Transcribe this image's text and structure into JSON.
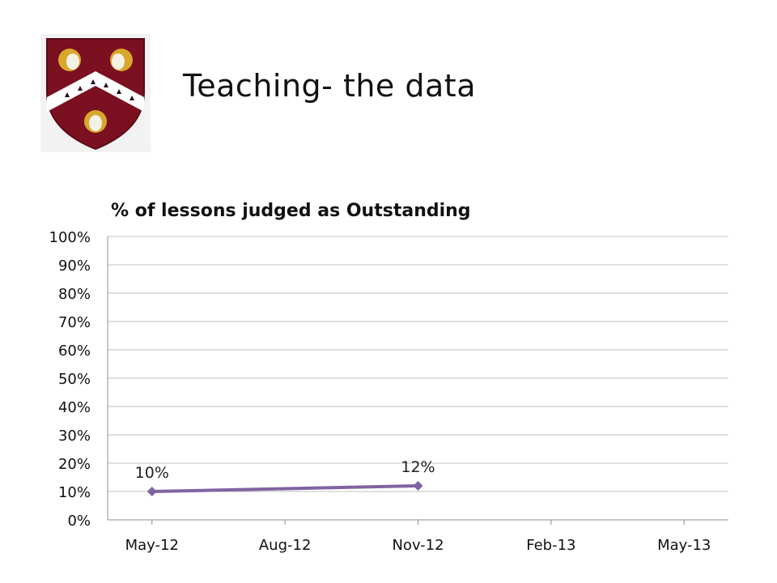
{
  "slide": {
    "title": "Teaching- the data"
  },
  "crest": {
    "name": "school-crest",
    "colors": {
      "maroon": "#7a1020",
      "gold": "#d9a72b",
      "white": "#ffffff"
    }
  },
  "chart_data": {
    "type": "line",
    "title": "% of lessons judged as Outstanding",
    "xlabel": "",
    "ylabel": "",
    "x_ticks": [
      "May-12",
      "Aug-12",
      "Nov-12",
      "Feb-13",
      "May-13"
    ],
    "x_range": [
      "2012-04",
      "2013-06"
    ],
    "y_ticks": [
      "0%",
      "10%",
      "20%",
      "30%",
      "40%",
      "50%",
      "60%",
      "70%",
      "80%",
      "90%",
      "100%"
    ],
    "ylim": [
      0,
      100
    ],
    "grid": true,
    "series": [
      {
        "color": "#8064a2",
        "points": [
          {
            "x": "2012-05",
            "y": 10,
            "label": "10%"
          },
          {
            "x": "2012-11",
            "y": 12,
            "label": "12%"
          }
        ]
      }
    ]
  }
}
